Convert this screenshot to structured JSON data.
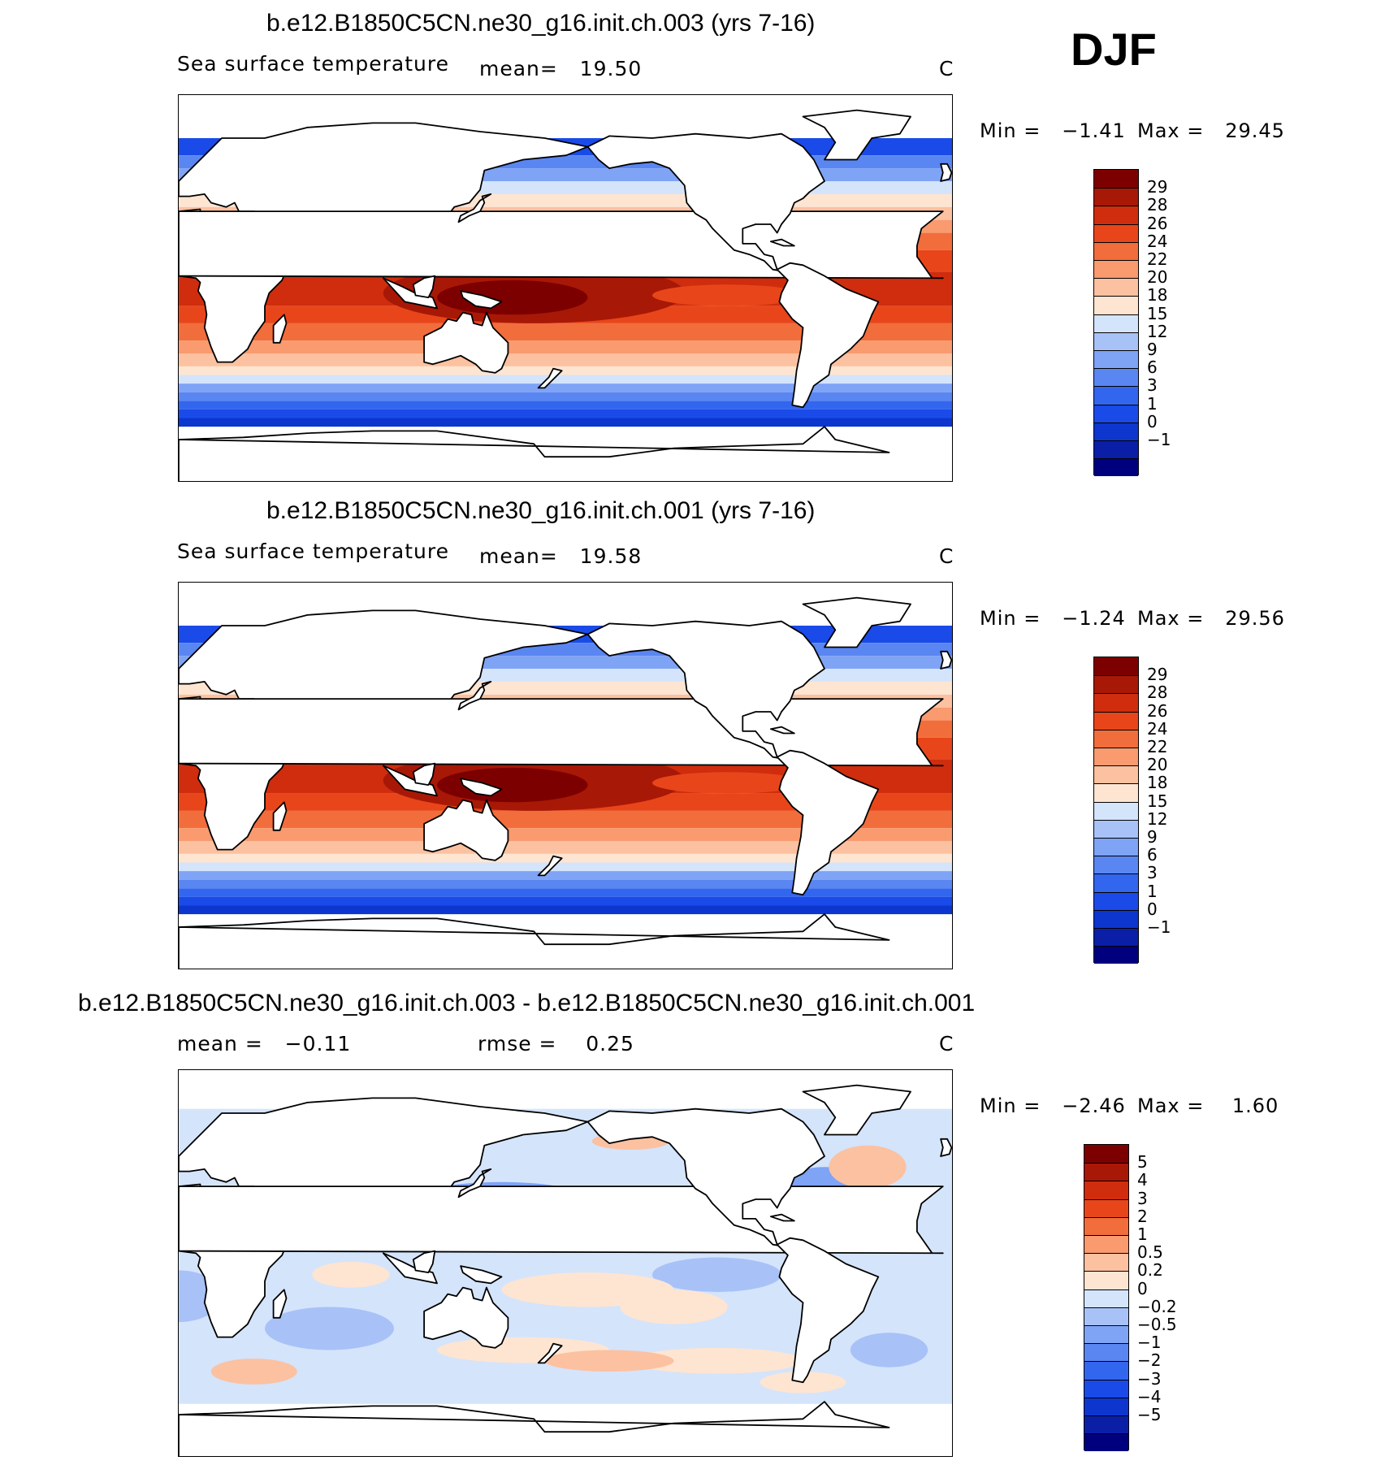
{
  "season": "DJF",
  "colors": {
    "abs_scale": [
      "#00007f",
      "#0a1fa6",
      "#0d36cf",
      "#1a4be8",
      "#3366ee",
      "#5a86f2",
      "#7fa3f5",
      "#a8c2f8",
      "#d4e4fb",
      "#fde5d2",
      "#fcc1a0",
      "#f99a6f",
      "#f26d3c",
      "#e8461a",
      "#cf2d0e",
      "#a81807",
      "#7d0000"
    ],
    "diff_scale": [
      "#00007f",
      "#0a1fa6",
      "#0d36cf",
      "#1a4be8",
      "#3366ee",
      "#5a86f2",
      "#7fa3f5",
      "#a8c2f8",
      "#d4e4fb",
      "#fde5d2",
      "#fcc1a0",
      "#f99a6f",
      "#f26d3c",
      "#e8461a",
      "#cf2d0e",
      "#a81807",
      "#7d0000"
    ]
  },
  "panels": [
    {
      "title": "b.e12.B1850C5CN.ne30_g16.init.ch.003 (yrs 7-16)",
      "left_label": "Sea surface temperature",
      "stat1": "mean=   19.50",
      "units": "C",
      "min_text": "Min =   −1.41",
      "max_text": "Max =   29.45",
      "levels": [
        "29",
        "28",
        "26",
        "24",
        "22",
        "20",
        "18",
        "15",
        "12",
        "9",
        "6",
        "3",
        "1",
        "0",
        "−1"
      ]
    },
    {
      "title": "b.e12.B1850C5CN.ne30_g16.init.ch.001 (yrs 7-16)",
      "left_label": "Sea surface temperature",
      "stat1": "mean=   19.58",
      "units": "C",
      "min_text": "Min =   −1.24",
      "max_text": "Max =   29.56",
      "levels": [
        "29",
        "28",
        "26",
        "24",
        "22",
        "20",
        "18",
        "15",
        "12",
        "9",
        "6",
        "3",
        "1",
        "0",
        "−1"
      ]
    },
    {
      "title": "b.e12.B1850C5CN.ne30_g16.init.ch.003 - b.e12.B1850C5CN.ne30_g16.init.ch.001",
      "stat1": "mean =   −0.11",
      "stat2": "rmse =    0.25",
      "units": "C",
      "min_text": "Min =   −2.46",
      "max_text": "Max =    1.60",
      "levels": [
        "5",
        "4",
        "3",
        "2",
        "1",
        "0.5",
        "0.2",
        "0",
        "−0.2",
        "−0.5",
        "−1",
        "−2",
        "−3",
        "−4",
        "−5"
      ]
    }
  ]
}
